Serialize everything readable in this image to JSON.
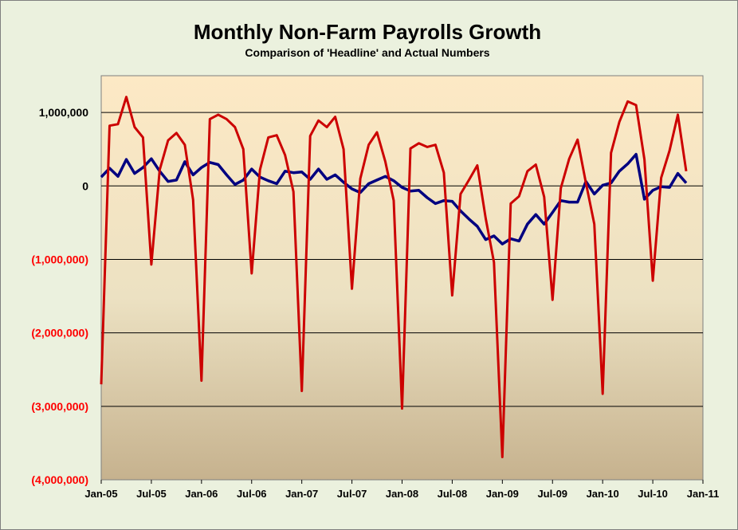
{
  "chart_data": {
    "type": "line",
    "title": "Monthly Non-Farm Payrolls Growth",
    "subtitle": "Comparison of 'Headline' and Actual Numbers",
    "xlabel": "",
    "ylabel": "",
    "x_range": [
      "Jan-05",
      "Jan-11"
    ],
    "ylim": [
      -4000000,
      1500000
    ],
    "y_ticks": [
      {
        "value": 1000000,
        "label": "1,000,000",
        "color": "#000000"
      },
      {
        "value": 0,
        "label": "0",
        "color": "#000000"
      },
      {
        "value": -1000000,
        "label": "(1,000,000)",
        "color": "#ff0000"
      },
      {
        "value": -2000000,
        "label": "(2,000,000)",
        "color": "#ff0000"
      },
      {
        "value": -3000000,
        "label": "(3,000,000)",
        "color": "#ff0000"
      },
      {
        "value": -4000000,
        "label": "(4,000,000)",
        "color": "#ff0000"
      }
    ],
    "x_ticks": [
      {
        "date": "2005-01",
        "label": "Jan-05"
      },
      {
        "date": "2005-07",
        "label": "Jul-05"
      },
      {
        "date": "2006-01",
        "label": "Jan-06"
      },
      {
        "date": "2006-07",
        "label": "Jul-06"
      },
      {
        "date": "2007-01",
        "label": "Jan-07"
      },
      {
        "date": "2007-07",
        "label": "Jul-07"
      },
      {
        "date": "2008-01",
        "label": "Jan-08"
      },
      {
        "date": "2008-07",
        "label": "Jul-08"
      },
      {
        "date": "2009-01",
        "label": "Jan-09"
      },
      {
        "date": "2009-07",
        "label": "Jul-09"
      },
      {
        "date": "2010-01",
        "label": "Jan-10"
      },
      {
        "date": "2010-07",
        "label": "Jul-10"
      },
      {
        "date": "2011-01",
        "label": "Jan-11"
      }
    ],
    "grid": true,
    "legend": "none",
    "series": [
      {
        "color": "#000080",
        "x": [
          "2005-01",
          "2005-02",
          "2005-03",
          "2005-04",
          "2005-05",
          "2005-06",
          "2005-07",
          "2005-08",
          "2005-09",
          "2005-10",
          "2005-11",
          "2005-12",
          "2006-01",
          "2006-02",
          "2006-03",
          "2006-04",
          "2006-05",
          "2006-06",
          "2006-07",
          "2006-08",
          "2006-09",
          "2006-10",
          "2006-11",
          "2006-12",
          "2007-01",
          "2007-02",
          "2007-03",
          "2007-04",
          "2007-05",
          "2007-06",
          "2007-07",
          "2007-08",
          "2007-09",
          "2007-10",
          "2007-11",
          "2007-12",
          "2008-01",
          "2008-02",
          "2008-03",
          "2008-04",
          "2008-05",
          "2008-06",
          "2008-07",
          "2008-08",
          "2008-09",
          "2008-10",
          "2008-11",
          "2008-12",
          "2009-01",
          "2009-02",
          "2009-03",
          "2009-04",
          "2009-05",
          "2009-06",
          "2009-07",
          "2009-08",
          "2009-09",
          "2009-10",
          "2009-11",
          "2009-12",
          "2010-01",
          "2010-02",
          "2010-03",
          "2010-04",
          "2010-05",
          "2010-06",
          "2010-07",
          "2010-08",
          "2010-09",
          "2010-10",
          "2010-11"
        ],
        "values": [
          120000,
          240000,
          130000,
          360000,
          170000,
          250000,
          370000,
          200000,
          60000,
          80000,
          330000,
          150000,
          250000,
          320000,
          290000,
          150000,
          20000,
          80000,
          230000,
          120000,
          70000,
          30000,
          200000,
          180000,
          190000,
          90000,
          230000,
          90000,
          150000,
          50000,
          -40000,
          -90000,
          30000,
          80000,
          130000,
          70000,
          -20000,
          -70000,
          -60000,
          -160000,
          -240000,
          -200000,
          -210000,
          -340000,
          -450000,
          -550000,
          -730000,
          -680000,
          -790000,
          -720000,
          -750000,
          -520000,
          -390000,
          -520000,
          -360000,
          -200000,
          -220000,
          -220000,
          60000,
          -110000,
          10000,
          40000,
          200000,
          300000,
          430000,
          -180000,
          -60000,
          -10000,
          -20000,
          170000,
          40000
        ]
      },
      {
        "color": "#cc0000",
        "x": [
          "2005-01",
          "2005-02",
          "2005-03",
          "2005-04",
          "2005-05",
          "2005-06",
          "2005-07",
          "2005-08",
          "2005-09",
          "2005-10",
          "2005-11",
          "2005-12",
          "2006-01",
          "2006-02",
          "2006-03",
          "2006-04",
          "2006-05",
          "2006-06",
          "2006-07",
          "2006-08",
          "2006-09",
          "2006-10",
          "2006-11",
          "2006-12",
          "2007-01",
          "2007-02",
          "2007-03",
          "2007-04",
          "2007-05",
          "2007-06",
          "2007-07",
          "2007-08",
          "2007-09",
          "2007-10",
          "2007-11",
          "2007-12",
          "2008-01",
          "2008-02",
          "2008-03",
          "2008-04",
          "2008-05",
          "2008-06",
          "2008-07",
          "2008-08",
          "2008-09",
          "2008-10",
          "2008-11",
          "2008-12",
          "2009-01",
          "2009-02",
          "2009-03",
          "2009-04",
          "2009-05",
          "2009-06",
          "2009-07",
          "2009-08",
          "2009-09",
          "2009-10",
          "2009-11",
          "2009-12",
          "2010-01",
          "2010-02",
          "2010-03",
          "2010-04",
          "2010-05",
          "2010-06",
          "2010-07",
          "2010-08",
          "2010-09",
          "2010-10",
          "2010-11"
        ],
        "values": [
          -2700000,
          820000,
          840000,
          1210000,
          800000,
          660000,
          -1070000,
          220000,
          620000,
          720000,
          560000,
          -190000,
          -2650000,
          910000,
          970000,
          910000,
          800000,
          500000,
          -1190000,
          220000,
          660000,
          690000,
          420000,
          -80000,
          -2790000,
          680000,
          890000,
          800000,
          940000,
          500000,
          -1400000,
          100000,
          560000,
          730000,
          330000,
          -200000,
          -3030000,
          510000,
          580000,
          530000,
          560000,
          180000,
          -1490000,
          -110000,
          80000,
          280000,
          -440000,
          -1040000,
          -3690000,
          -240000,
          -140000,
          200000,
          290000,
          -150000,
          -1550000,
          -30000,
          370000,
          630000,
          40000,
          -520000,
          -2830000,
          450000,
          870000,
          1150000,
          1100000,
          360000,
          -1290000,
          110000,
          480000,
          970000,
          200000
        ]
      }
    ]
  }
}
